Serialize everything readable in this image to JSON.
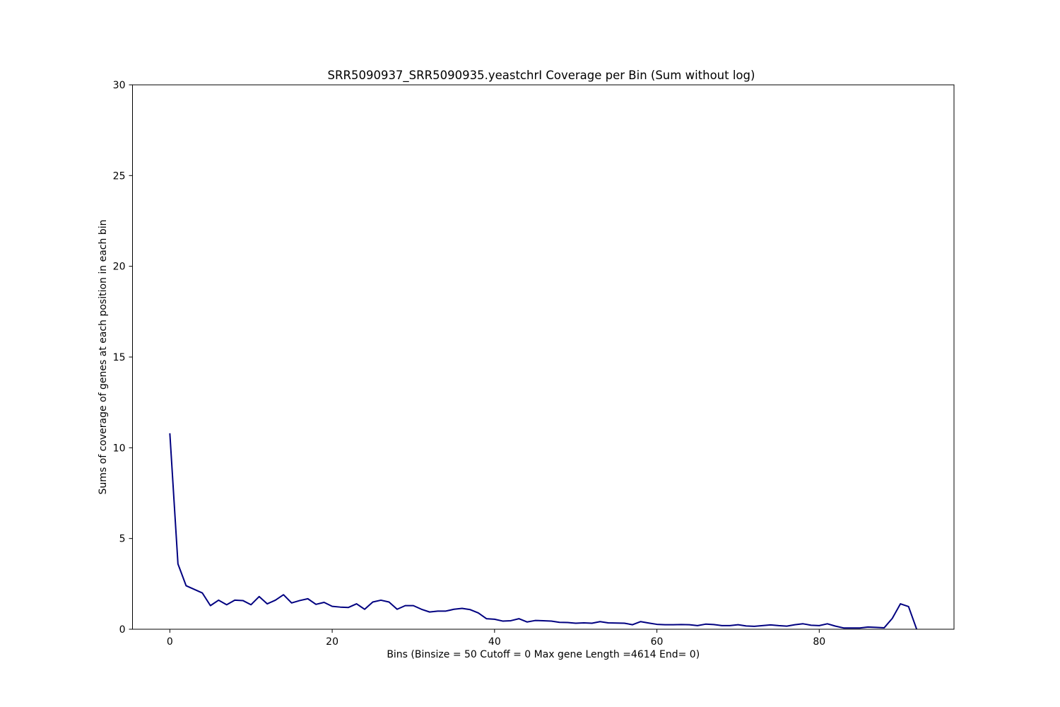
{
  "chart_data": {
    "type": "line",
    "title": "SRR5090937_SRR5090935.yeastchrI Coverage per Bin (Sum without log)",
    "xlabel": "Bins  (Binsize = 50 Cutoff = 0 Max gene Length =4614 End= 0)",
    "ylabel": "Sums of coverage of genes at each position in each bin",
    "xlim": [
      -4.6,
      96.6
    ],
    "ylim": [
      0,
      30
    ],
    "x_ticks": [
      0,
      20,
      40,
      60,
      80
    ],
    "y_ticks": [
      0,
      5,
      10,
      15,
      20,
      25,
      30
    ],
    "grid": false,
    "line_color": "#000080",
    "series": [
      {
        "x": [
          0,
          1,
          2,
          3,
          4,
          5,
          6,
          7,
          8,
          9,
          10,
          11,
          12,
          13,
          14,
          15,
          16,
          17,
          18,
          19,
          20,
          21,
          22,
          23,
          24,
          25,
          26,
          27,
          28,
          29,
          30,
          31,
          32,
          33,
          34,
          35,
          36,
          37,
          38,
          39,
          40,
          41,
          42,
          43,
          44,
          45,
          46,
          47,
          48,
          49,
          50,
          51,
          52,
          53,
          54,
          55,
          56,
          57,
          58,
          59,
          60,
          61,
          62,
          63,
          64,
          65,
          66,
          67,
          68,
          69,
          70,
          71,
          72,
          73,
          74,
          75,
          76,
          77,
          78,
          79,
          80,
          81,
          82,
          83,
          84,
          85,
          86,
          87,
          88,
          89,
          90,
          91,
          92
        ],
        "values": [
          10.8,
          3.6,
          2.4,
          2.2,
          2.0,
          1.3,
          1.6,
          1.35,
          1.6,
          1.58,
          1.35,
          1.8,
          1.4,
          1.6,
          1.9,
          1.45,
          1.58,
          1.68,
          1.37,
          1.48,
          1.26,
          1.22,
          1.2,
          1.4,
          1.1,
          1.5,
          1.6,
          1.5,
          1.1,
          1.3,
          1.3,
          1.1,
          0.95,
          1.0,
          1.0,
          1.1,
          1.15,
          1.08,
          0.9,
          0.58,
          0.55,
          0.45,
          0.47,
          0.58,
          0.4,
          0.48,
          0.47,
          0.45,
          0.38,
          0.37,
          0.33,
          0.35,
          0.33,
          0.42,
          0.35,
          0.34,
          0.33,
          0.25,
          0.42,
          0.34,
          0.27,
          0.25,
          0.25,
          0.26,
          0.25,
          0.2,
          0.28,
          0.26,
          0.2,
          0.2,
          0.25,
          0.18,
          0.16,
          0.2,
          0.24,
          0.2,
          0.17,
          0.25,
          0.3,
          0.22,
          0.2,
          0.3,
          0.17,
          0.07,
          0.07,
          0.07,
          0.12,
          0.1,
          0.08,
          0.6,
          1.4,
          1.25,
          0.0
        ]
      }
    ]
  }
}
